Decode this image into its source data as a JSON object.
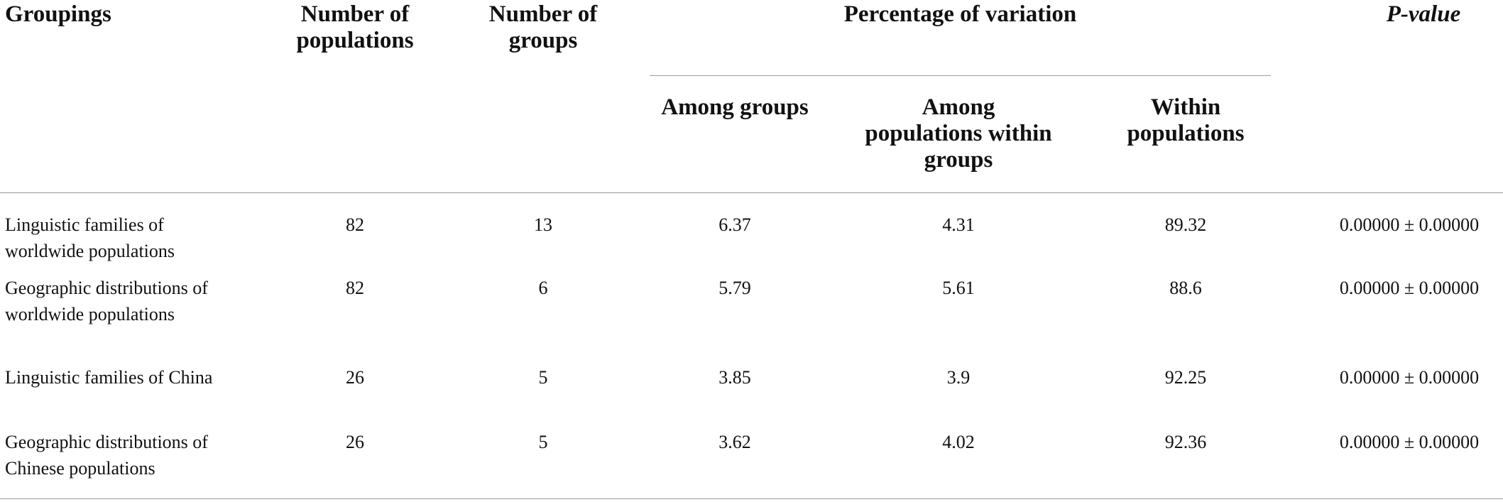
{
  "table": {
    "headers": {
      "groupings": "Groupings",
      "num_populations": "Number of populations",
      "num_groups": "Number of groups",
      "percentage_variation": "Percentage of variation",
      "p_value": "P-value",
      "among_groups": "Among groups",
      "among_pop_within_groups": "Among populations within groups",
      "within_populations": "Within populations"
    },
    "rows": [
      {
        "grouping": "Linguistic families of worldwide populations",
        "populations": "82",
        "groups": "13",
        "among_groups": "6.37",
        "among_pop": "4.31",
        "within_pop": "89.32",
        "p_value": "0.00000 ± 0.00000"
      },
      {
        "grouping": "Geographic distributions of worldwide populations",
        "populations": "82",
        "groups": "6",
        "among_groups": "5.79",
        "among_pop": "5.61",
        "within_pop": "88.6",
        "p_value": "0.00000 ± 0.00000"
      },
      {
        "grouping": "Linguistic families of China",
        "populations": "26",
        "groups": "5",
        "among_groups": "3.85",
        "among_pop": "3.9",
        "within_pop": "92.25",
        "p_value": "0.00000 ± 0.00000"
      },
      {
        "grouping": "Geographic distributions of Chinese populations",
        "populations": "26",
        "groups": "5",
        "among_groups": "3.62",
        "among_pop": "4.02",
        "within_pop": "92.36",
        "p_value": "0.00000 ± 0.00000"
      }
    ]
  }
}
